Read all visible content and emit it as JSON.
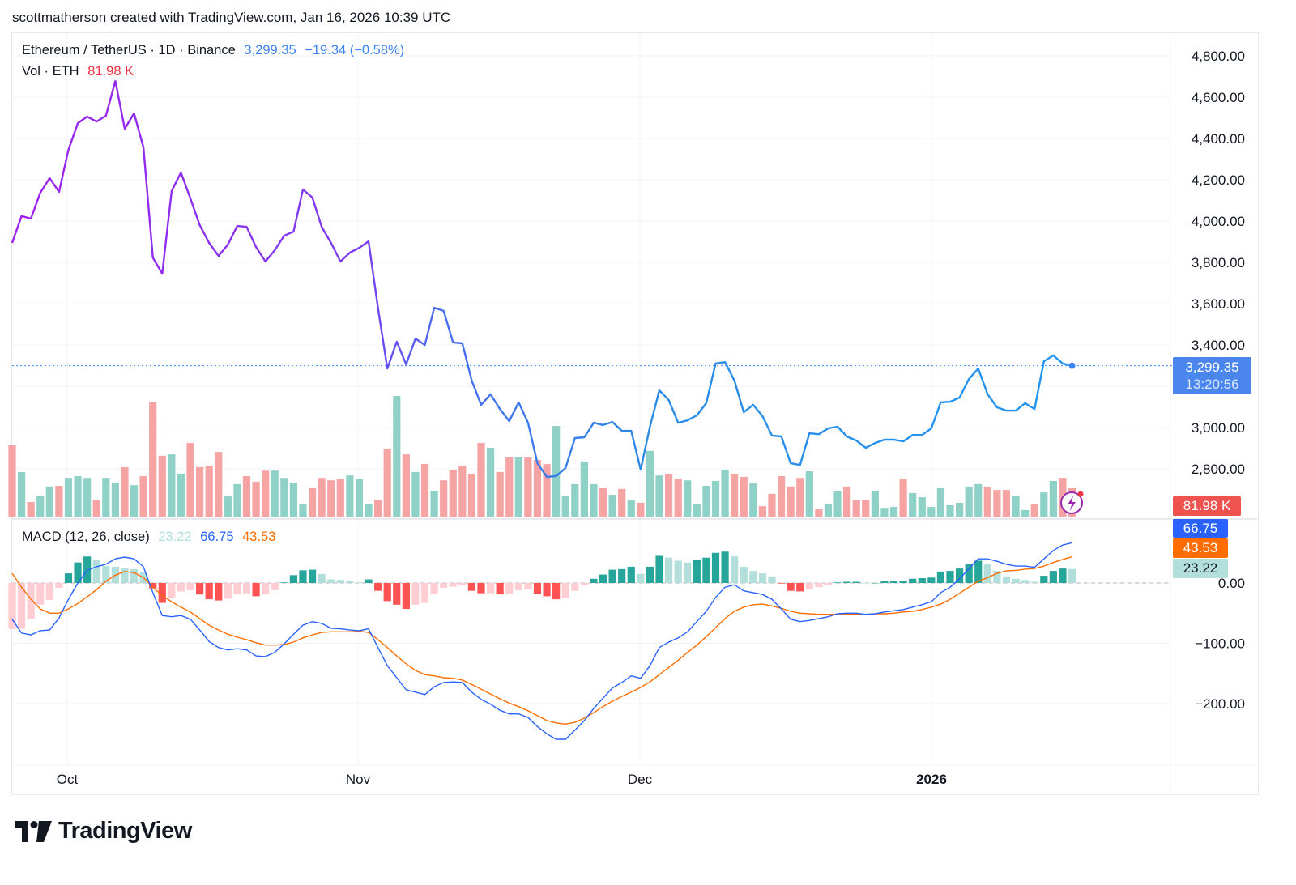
{
  "credit": "scottmatherson created with TradingView.com, Jan 16, 2026 10:39 UTC",
  "legend": {
    "symbol": "Ethereum / TetherUS · 1D · Binance",
    "price": "3,299.35",
    "change": "−19.34 (−0.58%)",
    "vol_label": "Vol · ETH",
    "vol_value": "81.98 K",
    "macd_label": "MACD (12, 26, close)",
    "macd_hist": "23.22",
    "macd_value": "66.75",
    "macd_signal": "43.53"
  },
  "price_tag": {
    "price": "3,299.35",
    "countdown": "13:20:56"
  },
  "vol_tag": "81.98 K",
  "macd_tags": {
    "macd": "66.75",
    "signal": "43.53",
    "hist": "23.22"
  },
  "logo_text": "TradingView",
  "colors": {
    "up": "#26a69a",
    "down": "#ef5350",
    "vol_up": "#8fd0c7",
    "vol_down": "#f5a3a3",
    "macd": "#2962ff",
    "signal": "#ff6d00",
    "price_start": "#a020f0",
    "price_end": "#2196f3",
    "hist_up_strong": "#26a69a",
    "hist_up_weak": "#b2dfdb",
    "hist_down_strong": "#ff5252",
    "hist_down_weak": "#ffcdd2"
  },
  "chart_data": [
    {
      "type": "line",
      "title": "Ethereum / TetherUS · 1D · Binance",
      "x_start": "2025-09-25",
      "x_end": "2026-01-16",
      "x_ticks": [
        "Oct",
        "Nov",
        "Dec",
        "2026"
      ],
      "y_ticks": [
        "4,800.00",
        "4,600.00",
        "4,400.00",
        "4,200.00",
        "4,000.00",
        "3,800.00",
        "3,600.00",
        "3,400.00",
        "3,000.00",
        "2,800.00"
      ],
      "ylim": [
        2660,
        4800
      ],
      "grid": true,
      "close": [
        3894,
        4024,
        4012,
        4137,
        4208,
        4141,
        4345,
        4474,
        4506,
        4482,
        4510,
        4678,
        4447,
        4522,
        4357,
        3823,
        3745,
        4145,
        4235,
        4110,
        3980,
        3894,
        3831,
        3886,
        3976,
        3972,
        3874,
        3804,
        3859,
        3929,
        3949,
        4153,
        4114,
        3972,
        3894,
        3804,
        3847,
        3870,
        3902,
        3580,
        3286,
        3416,
        3306,
        3431,
        3400,
        3580,
        3565,
        3412,
        3408,
        3227,
        3110,
        3161,
        3090,
        3031,
        3122,
        3023,
        2827,
        2761,
        2765,
        2804,
        2949,
        2953,
        3023,
        3012,
        3027,
        2984,
        2984,
        2796,
        3004,
        3180,
        3133,
        3023,
        3035,
        3059,
        3118,
        3310,
        3317,
        3227,
        3074,
        3110,
        3055,
        2961,
        2957,
        2827,
        2819,
        2972,
        2968,
        2996,
        3004,
        2957,
        2937,
        2902,
        2925,
        2941,
        2941,
        2933,
        2964,
        2964,
        2996,
        3122,
        3125,
        3145,
        3235,
        3286,
        3161,
        3098,
        3082,
        3082,
        3118,
        3090,
        3321,
        3349,
        3310,
        3299.35
      ]
    },
    {
      "type": "bar",
      "name": "Vol · ETH",
      "unit": "K",
      "values": [
        206,
        129,
        42,
        61,
        87,
        89,
        112,
        117,
        112,
        47,
        112,
        98,
        143,
        91,
        117,
        332,
        176,
        180,
        124,
        213,
        143,
        147,
        187,
        59,
        94,
        117,
        101,
        133,
        133,
        112,
        98,
        35,
        82,
        112,
        105,
        108,
        119,
        108,
        35,
        49,
        197,
        349,
        180,
        129,
        152,
        75,
        105,
        136,
        147,
        124,
        213,
        199,
        129,
        171,
        171,
        171,
        164,
        152,
        262,
        61,
        94,
        159,
        94,
        82,
        63,
        80,
        49,
        40,
        190,
        119,
        122,
        110,
        105,
        35,
        89,
        103,
        136,
        124,
        115,
        96,
        30,
        66,
        117,
        87,
        112,
        131,
        21,
        37,
        73,
        87,
        47,
        47,
        75,
        23,
        28,
        110,
        68,
        56,
        28,
        82,
        33,
        40,
        87,
        94,
        87,
        77,
        77,
        61,
        19,
        35,
        70,
        103,
        112,
        81.98
      ]
    },
    {
      "type": "line",
      "name": "MACD (12, 26, close)",
      "y_ticks": [
        "0.00",
        "−100.00",
        "−200.00"
      ],
      "ylim": [
        -300,
        100
      ],
      "macd": [
        -60,
        -83,
        -86,
        -79,
        -78,
        -58,
        -27,
        0,
        21,
        27,
        31,
        40,
        43,
        40,
        27,
        -16,
        -54,
        -56,
        -54,
        -60,
        -78,
        -97,
        -107,
        -111,
        -109,
        -111,
        -121,
        -122,
        -115,
        -101,
        -85,
        -70,
        -64,
        -67,
        -75,
        -76,
        -78,
        -79,
        -76,
        -107,
        -137,
        -157,
        -177,
        -181,
        -185,
        -172,
        -165,
        -164,
        -165,
        -181,
        -193,
        -201,
        -211,
        -217,
        -217,
        -223,
        -238,
        -250,
        -259,
        -259,
        -244,
        -228,
        -208,
        -191,
        -174,
        -165,
        -154,
        -158,
        -137,
        -107,
        -98,
        -91,
        -81,
        -64,
        -47,
        -24,
        -7,
        -3,
        -13,
        -16,
        -19,
        -27,
        -43,
        -60,
        -64,
        -62,
        -59,
        -56,
        -51,
        -50,
        -50,
        -52,
        -51,
        -48,
        -46,
        -44,
        -40,
        -36,
        -31,
        -16,
        -7,
        7,
        24,
        40,
        40,
        36,
        31,
        28,
        28,
        26,
        40,
        54,
        63,
        66.75
      ],
      "signal": [
        16,
        -7,
        -27,
        -43,
        -50,
        -50,
        -43,
        -34,
        -23,
        -11,
        3,
        13,
        19,
        17,
        9,
        -7,
        -21,
        -31,
        -40,
        -48,
        -59,
        -70,
        -78,
        -85,
        -90,
        -94,
        -99,
        -103,
        -103,
        -102,
        -98,
        -91,
        -86,
        -82,
        -81,
        -81,
        -81,
        -80,
        -82,
        -94,
        -107,
        -121,
        -134,
        -145,
        -152,
        -154,
        -157,
        -158,
        -161,
        -168,
        -176,
        -184,
        -192,
        -199,
        -205,
        -212,
        -220,
        -228,
        -232,
        -234,
        -231,
        -224,
        -215,
        -205,
        -196,
        -188,
        -181,
        -173,
        -164,
        -152,
        -140,
        -128,
        -115,
        -103,
        -89,
        -74,
        -59,
        -47,
        -40,
        -36,
        -35,
        -38,
        -42,
        -47,
        -50,
        -51,
        -52,
        -52,
        -52,
        -52,
        -52,
        -52,
        -51,
        -51,
        -50,
        -48,
        -47,
        -44,
        -40,
        -35,
        -27,
        -17,
        -7,
        3,
        9,
        16,
        20,
        21,
        23,
        24,
        28,
        34,
        39,
        43.53
      ]
    }
  ]
}
